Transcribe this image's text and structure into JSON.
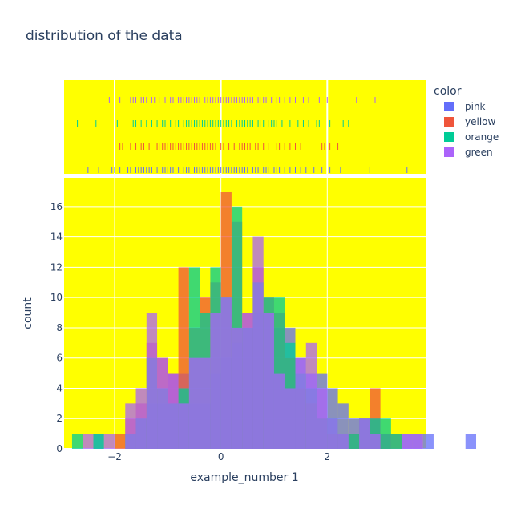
{
  "chart_data": {
    "type": "bar",
    "subtype": "stacked-overlay-histogram-with-rug",
    "title": "distribution of the data",
    "xlabel": "example_number 1",
    "ylabel": "count",
    "xlim": [
      -2.95,
      3.85
    ],
    "ylim": [
      0,
      17.9
    ],
    "x_ticks": [
      -2,
      0,
      2
    ],
    "x_tick_labels": [
      "−2",
      "0",
      "2"
    ],
    "y_ticks": [
      0,
      2,
      4,
      6,
      8,
      10,
      12,
      14,
      16
    ],
    "plot_background": "#ffff00",
    "grid": true,
    "legend": {
      "title": "color",
      "placement": "top-right"
    },
    "bin_width": 0.2,
    "bin_start": -2.8,
    "series": [
      {
        "name": "pink",
        "color": "#636efa",
        "values": [
          0,
          0,
          1,
          0,
          0,
          1,
          2,
          3,
          3,
          5,
          5,
          3,
          3,
          5,
          6,
          7,
          8,
          9,
          9,
          8,
          8,
          6,
          5,
          5,
          4,
          3,
          2,
          2,
          2,
          1,
          0,
          1,
          1,
          1,
          0,
          0,
          0,
          1
        ]
      },
      {
        "name": "yellow",
        "color": "#ef553b",
        "values": [
          0,
          0,
          0,
          0,
          1,
          2,
          3,
          7,
          6,
          5,
          12,
          8,
          10,
          11,
          17,
          15,
          9,
          12,
          10,
          9,
          6,
          4,
          3,
          2,
          1,
          1,
          1,
          2,
          4,
          1,
          1,
          0,
          0,
          0,
          0,
          0,
          0,
          0
        ]
      },
      {
        "name": "orange",
        "color": "#00cc96",
        "values": [
          1,
          0,
          1,
          0,
          0,
          1,
          2,
          6,
          4,
          3,
          4,
          12,
          9,
          12,
          10,
          16,
          8,
          11,
          10,
          10,
          7,
          5,
          4,
          2,
          2,
          1,
          1,
          2,
          2,
          2,
          1,
          0,
          0,
          0,
          0,
          0,
          0,
          0
        ]
      },
      {
        "name": "green",
        "color": "#ab63fa",
        "values": [
          0,
          1,
          0,
          1,
          0,
          3,
          4,
          9,
          6,
          5,
          3,
          6,
          6,
          9,
          10,
          8,
          9,
          14,
          9,
          5,
          4,
          6,
          7,
          4,
          2,
          1,
          0,
          2,
          1,
          0,
          0,
          1,
          1,
          0,
          0,
          0,
          0,
          0
        ]
      }
    ],
    "rug": {
      "pink": [
        -2.5,
        -2.3,
        -2.05,
        -2,
        -1.9,
        -1.75,
        -1.7,
        -1.6,
        -1.55,
        -1.5,
        -1.45,
        -1.4,
        -1.35,
        -1.3,
        -1.2,
        -1.1,
        -1.05,
        -1,
        -0.95,
        -0.9,
        -0.8,
        -0.7,
        -0.65,
        -0.6,
        -0.5,
        -0.45,
        -0.4,
        -0.35,
        -0.3,
        -0.25,
        -0.2,
        -0.15,
        -0.1,
        -0.05,
        0,
        0.05,
        0.1,
        0.15,
        0.2,
        0.25,
        0.3,
        0.35,
        0.4,
        0.45,
        0.5,
        0.6,
        0.65,
        0.7,
        0.8,
        0.85,
        0.9,
        1,
        1.05,
        1.1,
        1.2,
        1.3,
        1.4,
        1.5,
        1.6,
        1.75,
        1.9,
        2.05,
        2.25,
        2.8,
        3.5
      ],
      "yellow": [
        -1.9,
        -1.85,
        -1.7,
        -1.6,
        -1.5,
        -1.45,
        -1.35,
        -1.2,
        -1.15,
        -1.1,
        -1.05,
        -1,
        -0.95,
        -0.9,
        -0.85,
        -0.8,
        -0.75,
        -0.7,
        -0.65,
        -0.6,
        -0.55,
        -0.5,
        -0.45,
        -0.4,
        -0.35,
        -0.3,
        -0.25,
        -0.2,
        -0.15,
        -0.1,
        0,
        0.05,
        0.15,
        0.25,
        0.35,
        0.4,
        0.45,
        0.5,
        0.55,
        0.65,
        0.7,
        0.8,
        0.9,
        1.05,
        1.1,
        1.2,
        1.3,
        1.4,
        1.5,
        1.9,
        1.95,
        2.05,
        2.2
      ],
      "orange": [
        -2.7,
        -2.35,
        -1.95,
        -1.65,
        -1.6,
        -1.5,
        -1.4,
        -1.3,
        -1.2,
        -1.1,
        -1.05,
        -0.95,
        -0.85,
        -0.8,
        -0.7,
        -0.65,
        -0.6,
        -0.55,
        -0.5,
        -0.45,
        -0.4,
        -0.35,
        -0.3,
        -0.25,
        -0.2,
        -0.15,
        -0.1,
        -0.05,
        0,
        0.05,
        0.1,
        0.15,
        0.2,
        0.3,
        0.35,
        0.4,
        0.45,
        0.5,
        0.55,
        0.6,
        0.7,
        0.75,
        0.8,
        0.9,
        0.95,
        1,
        1.05,
        1.15,
        1.3,
        1.45,
        1.55,
        1.65,
        1.8,
        1.85,
        2.05,
        2.3,
        2.4
      ],
      "green": [
        -2.1,
        -1.9,
        -1.7,
        -1.65,
        -1.6,
        -1.5,
        -1.45,
        -1.4,
        -1.3,
        -1.25,
        -1.15,
        -1.05,
        -0.95,
        -0.9,
        -0.8,
        -0.75,
        -0.7,
        -0.65,
        -0.6,
        -0.55,
        -0.5,
        -0.45,
        -0.4,
        -0.3,
        -0.25,
        -0.2,
        -0.15,
        -0.1,
        -0.05,
        0,
        0.05,
        0.1,
        0.15,
        0.2,
        0.25,
        0.3,
        0.35,
        0.4,
        0.45,
        0.5,
        0.55,
        0.6,
        0.7,
        0.75,
        0.8,
        0.85,
        0.95,
        1.05,
        1.1,
        1.2,
        1.3,
        1.4,
        1.55,
        1.65,
        1.85,
        2,
        2.55,
        2.9
      ]
    }
  }
}
